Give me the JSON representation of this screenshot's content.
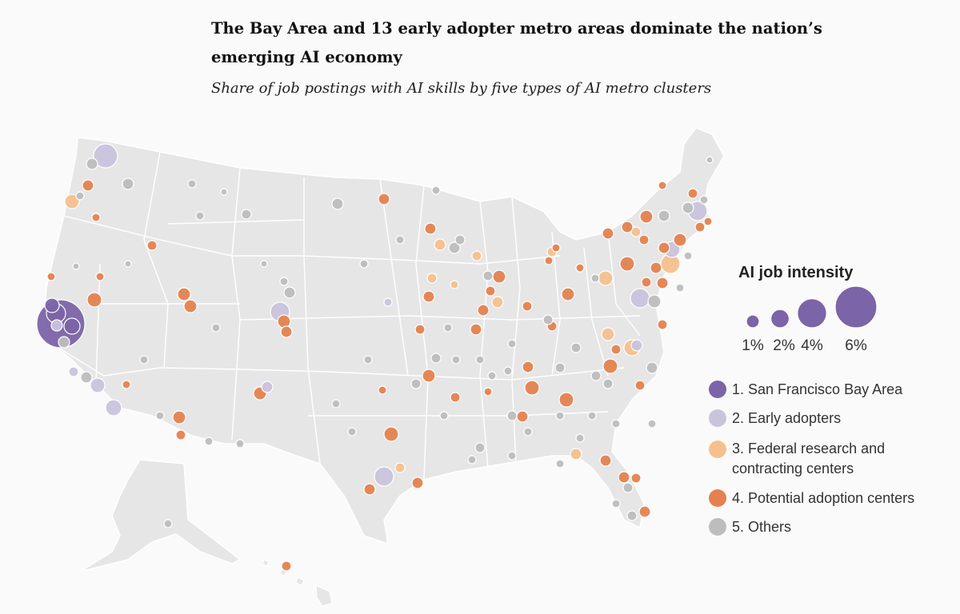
{
  "title": "The Bay Area and 13 early adopter metro areas dominate the nation’s emerging AI economy",
  "subtitle": "Share of job postings with AI skills by five types of AI metro clusters",
  "legend": {
    "title": "AI job intensity",
    "sizes": [
      {
        "label": "1%",
        "value": 1
      },
      {
        "label": "2%",
        "value": 2
      },
      {
        "label": "4%",
        "value": 4
      },
      {
        "label": "6%",
        "value": 6
      }
    ],
    "categories": [
      {
        "label": "1. San Francisco Bay Area",
        "color": "#7b64a7"
      },
      {
        "label": "2. Early adopters",
        "color": "#c9c3dc"
      },
      {
        "label": "3. Federal research and",
        "label2": "contracting centers",
        "color": "#f6c08e"
      },
      {
        "label": "4. Potential adoption centers",
        "color": "#e4824f"
      },
      {
        "label": "5. Others",
        "color": "#bdbdbd"
      }
    ]
  },
  "colors": {
    "land": "#e6e6e6",
    "borders": "#ffffff",
    "bay_area": "#7b64a7",
    "early": "#c9c3dc",
    "federal": "#f6c08e",
    "potential": "#e4824f",
    "others": "#bdbdbd"
  }
}
